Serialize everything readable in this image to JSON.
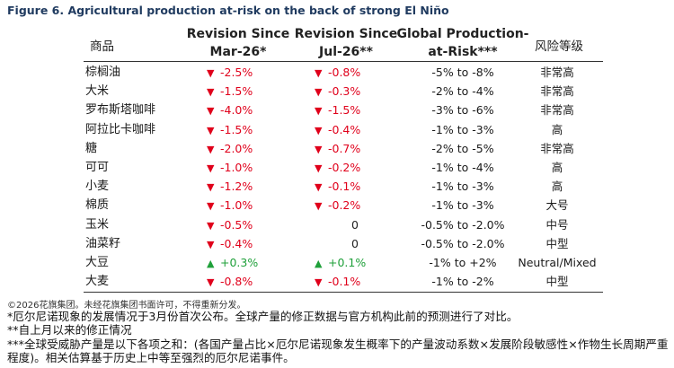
{
  "title": "Figure 6. Agricultural production at-risk on the back of strong El Niño",
  "headers": {
    "commodity": "商品",
    "rev1_line1": "Revision Since",
    "rev1_line2": "Mar-26*",
    "rev2_line1": "Revision Since",
    "rev2_line2": "Jul-26**",
    "global_line1": "Global Production-",
    "global_line2": "at-Risk***",
    "risk": "风险等级"
  },
  "rows": [
    {
      "name": "棕榈油",
      "rev1": "-2.5%",
      "rev1_dir": "down",
      "rev2": "-0.8%",
      "rev2_dir": "down",
      "global": "-5% to -8%",
      "risk": "非常高"
    },
    {
      "name": "大米",
      "rev1": "-1.5%",
      "rev1_dir": "down",
      "rev2": "-0.3%",
      "rev2_dir": "down",
      "global": "-2% to -4%",
      "risk": "非常高"
    },
    {
      "name": "罗布斯塔咖啡",
      "rev1": "-4.0%",
      "rev1_dir": "down",
      "rev2": "-1.5%",
      "rev2_dir": "down",
      "global": "-3% to -6%",
      "risk": "非常高"
    },
    {
      "name": "阿拉比卡咖啡",
      "rev1": "-1.5%",
      "rev1_dir": "down",
      "rev2": "-0.4%",
      "rev2_dir": "down",
      "global": "-1% to -3%",
      "risk": "高"
    },
    {
      "name": "糖",
      "rev1": "-2.0%",
      "rev1_dir": "down",
      "rev2": "-0.7%",
      "rev2_dir": "down",
      "global": "-2% to -5%",
      "risk": "非常高"
    },
    {
      "name": "可可",
      "rev1": "-1.0%",
      "rev1_dir": "down",
      "rev2": "-0.2%",
      "rev2_dir": "down",
      "global": "-1% to -4%",
      "risk": "高"
    },
    {
      "name": "小麦",
      "rev1": "-1.2%",
      "rev1_dir": "down",
      "rev2": "-0.1%",
      "rev2_dir": "down",
      "global": "-1% to -3%",
      "risk": "高"
    },
    {
      "name": "棉质",
      "rev1": "-1.0%",
      "rev1_dir": "down",
      "rev2": "-0.2%",
      "rev2_dir": "down",
      "global": "-1% to -3%",
      "risk": "大号"
    },
    {
      "name": "玉米",
      "rev1": "-0.5%",
      "rev1_dir": "down",
      "rev2": "0",
      "rev2_dir": "none",
      "global": "-0.5% to -2.0%",
      "risk": "中号"
    },
    {
      "name": "油菜籽",
      "rev1": "-0.4%",
      "rev1_dir": "down",
      "rev2": "0",
      "rev2_dir": "none",
      "global": "-0.5% to -2.0%",
      "risk": "中型"
    },
    {
      "name": "大豆",
      "rev1": "+0.3%",
      "rev1_dir": "up",
      "rev2": "+0.1%",
      "rev2_dir": "up",
      "global": "-1% to +2%",
      "risk": "Neutral/Mixed"
    },
    {
      "name": "大麦",
      "rev1": "-0.8%",
      "rev1_dir": "down",
      "rev2": "-0.1%",
      "rev2_dir": "down",
      "global": "-1% to -2%",
      "risk": "中型"
    }
  ],
  "footer": {
    "copyright": "©2026花旗集团。未经花旗集团书面许可，不得重新分发。",
    "note1": "*厄尔尼诺现象的发展情况于3月份首次公布。全球产量的修正数据与官方机构此前的预测进行了对比。",
    "note2": "**自上月以来的修正情况",
    "note3": "***全球受威胁产量是以下各项之和：(各国产量占比×厄尔尼诺现象发生概率下的产量波动系数×发展阶段敏感性×作物生长周期严重程度)。相关估算基于历史上中等至强烈的厄尔尼诺事件。"
  },
  "colors": {
    "down": "#e0001b",
    "up": "#1fa03a",
    "title": "#1f3a5f"
  }
}
